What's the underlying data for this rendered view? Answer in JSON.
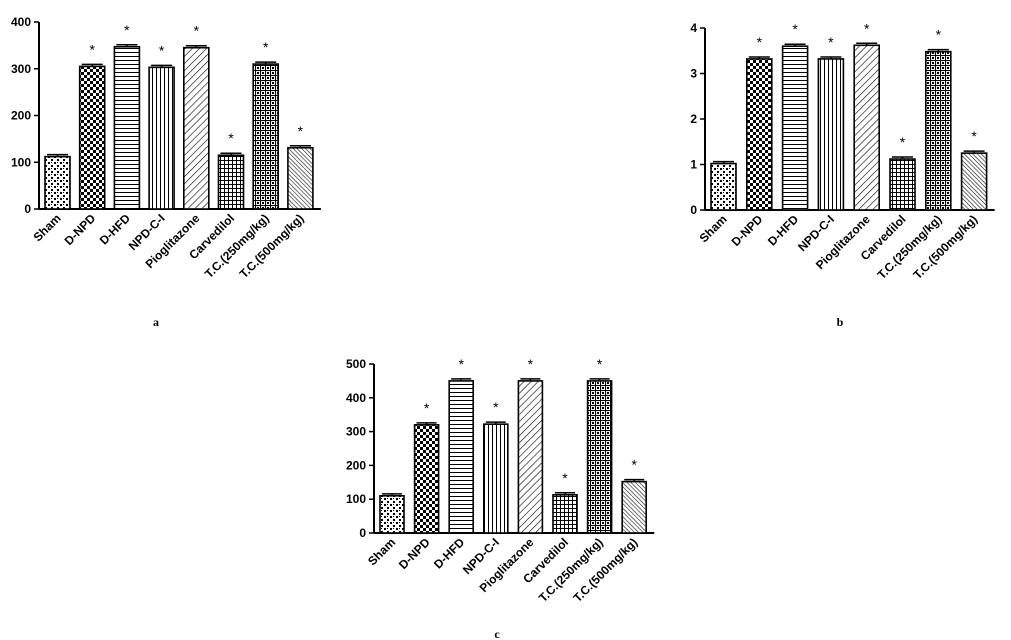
{
  "chart_data": [
    {
      "type": "bar",
      "panel_label": "a",
      "categories": [
        "Sham",
        "D-NPD",
        "D-HFD",
        "NPD-C-I",
        "Pioglitazone",
        "Carvedilol",
        "T.C.(250mg/kg)",
        "T.C.(500mg/kg)"
      ],
      "values": [
        112,
        305,
        347,
        303,
        345,
        115,
        310,
        131
      ],
      "significance": [
        "",
        "*",
        "*",
        "*",
        "*",
        "*",
        "*",
        "*"
      ],
      "ylim": [
        0,
        400
      ],
      "yticks": [
        "0",
        "100",
        "200",
        "300",
        "400"
      ],
      "grid": false
    },
    {
      "type": "bar",
      "panel_label": "b",
      "categories": [
        "Sham",
        "D-NPD",
        "D-HFD",
        "NPD-C-I",
        "Pioglitazone",
        "Carvedilol",
        "T.C.(250mg/kg)",
        "T.C.(500mg/kg)"
      ],
      "values": [
        1.02,
        3.32,
        3.6,
        3.32,
        3.62,
        1.12,
        3.48,
        1.25
      ],
      "significance": [
        "",
        "*",
        "*",
        "*",
        "*",
        "*",
        "*",
        "*"
      ],
      "ylim": [
        0,
        4
      ],
      "yticks": [
        "0",
        "1",
        "2",
        "3",
        "4"
      ],
      "grid": false
    },
    {
      "type": "bar",
      "panel_label": "c",
      "categories": [
        "Sham",
        "D-NPD",
        "D-HFD",
        "NPD-C-I",
        "Pioglitazone",
        "Carvedilol",
        "T.C.(250mg/kg)",
        "T.C.(500mg/kg)"
      ],
      "values": [
        110,
        320,
        450,
        322,
        450,
        113,
        450,
        152
      ],
      "significance": [
        "",
        "*",
        "*",
        "*",
        "*",
        "*",
        "*",
        "*"
      ],
      "ylim": [
        0,
        500
      ],
      "yticks": [
        "0",
        "100",
        "200",
        "300",
        "400",
        "500"
      ],
      "grid": false
    }
  ]
}
